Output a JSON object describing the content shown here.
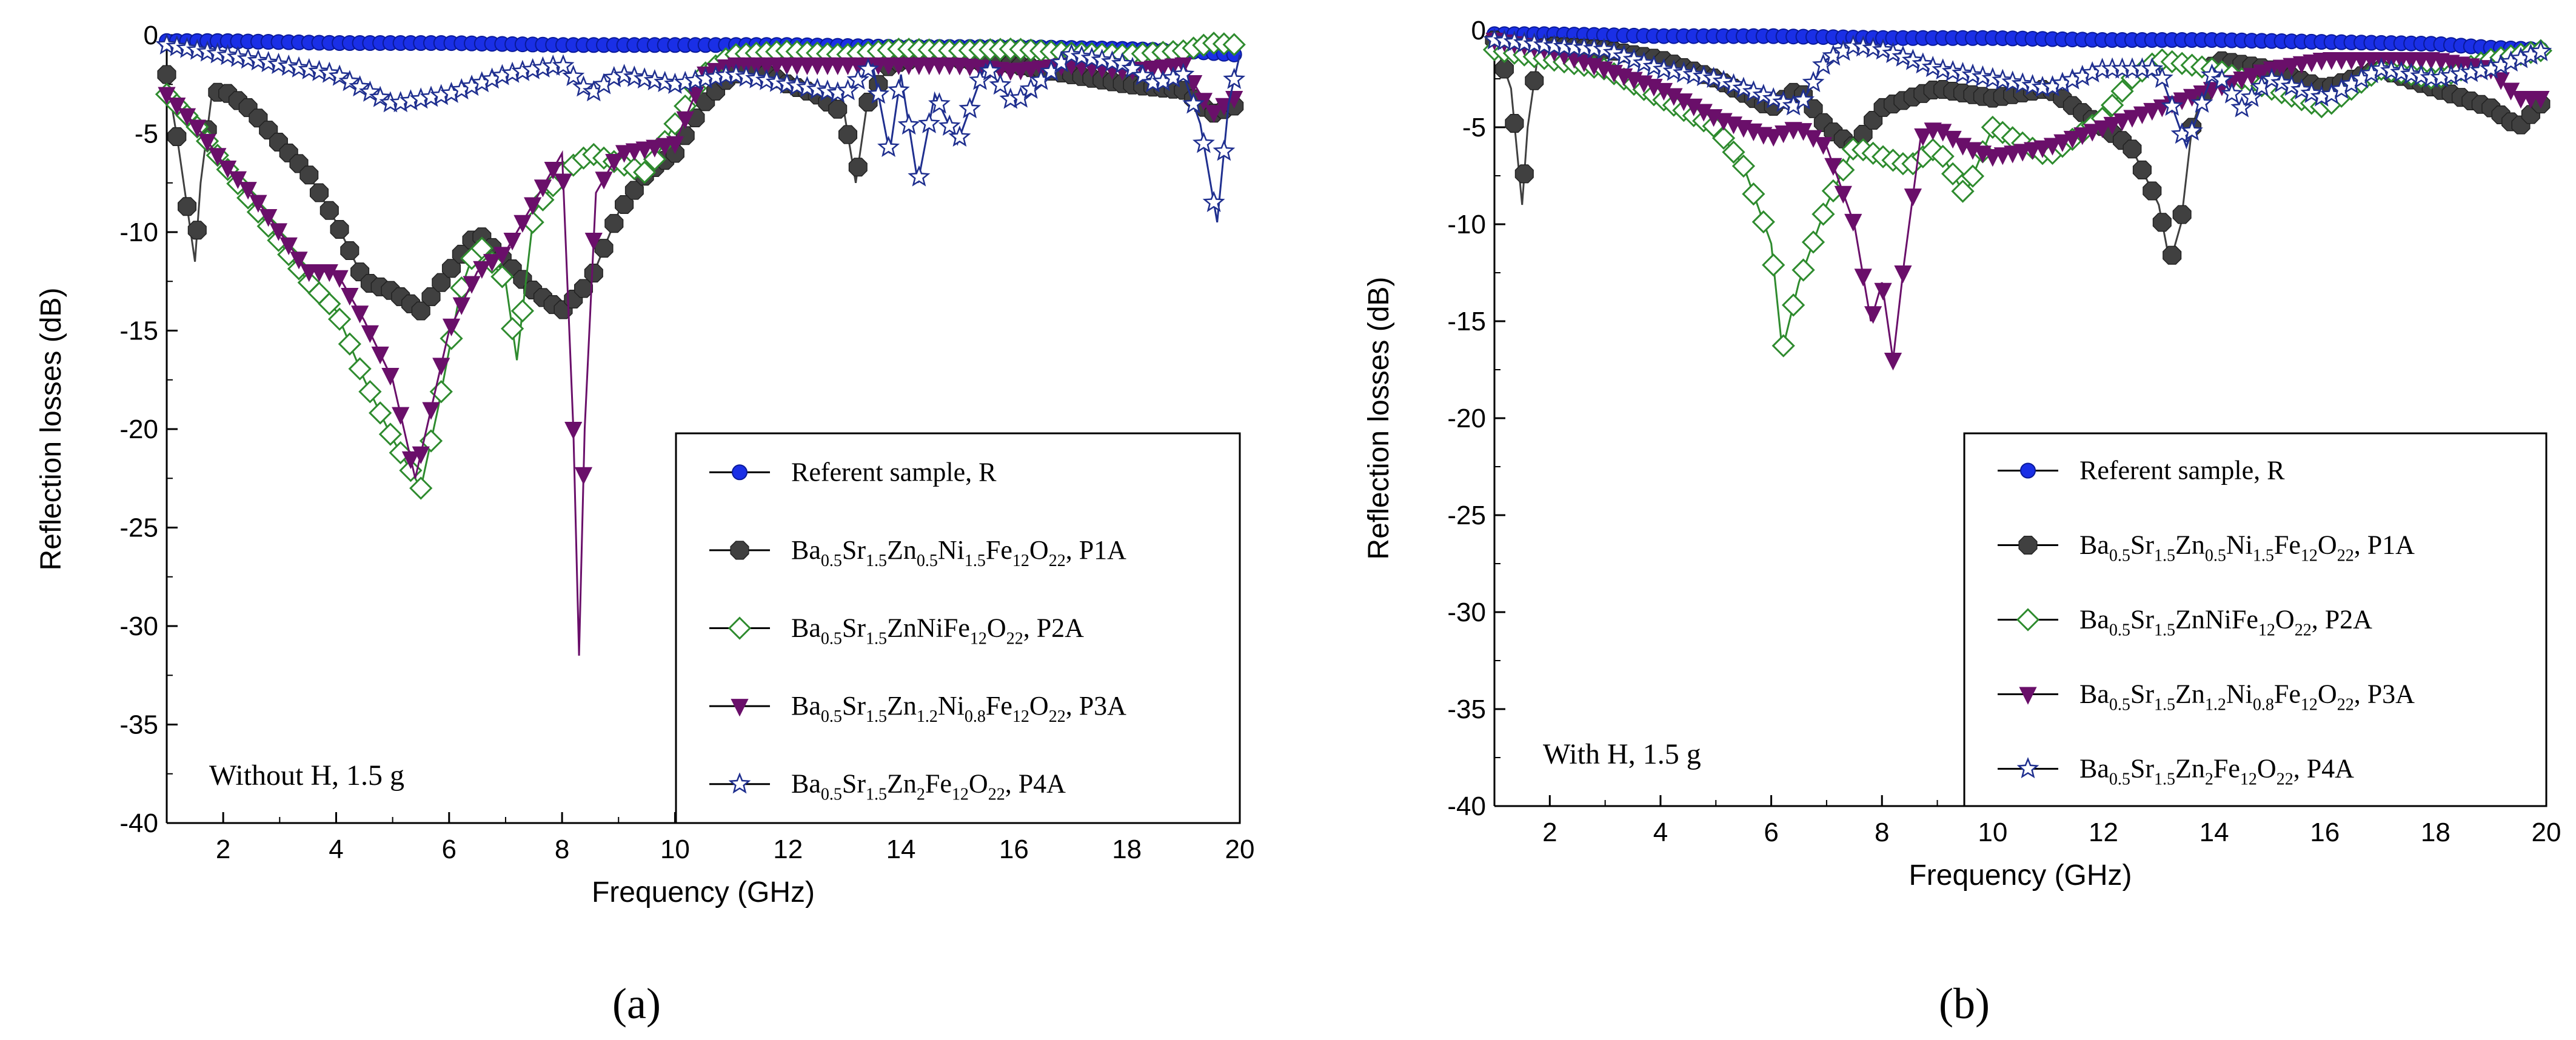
{
  "colors": {
    "R": "#1a2fe6",
    "P1A": "#404040",
    "P2A": "#2e8b2e",
    "P3A": "#6a0f6a",
    "P4A": "#1f2f8f"
  },
  "legend": [
    {
      "id": "R",
      "parts": [
        {
          "t": "Referent sample, R"
        }
      ]
    },
    {
      "id": "P1A",
      "parts": [
        {
          "t": "Ba"
        },
        {
          "t": "0.5",
          "s": 1
        },
        {
          "t": "Sr"
        },
        {
          "t": "1.5",
          "s": 1
        },
        {
          "t": "Zn"
        },
        {
          "t": "0.5",
          "s": 1
        },
        {
          "t": "Ni"
        },
        {
          "t": "1.5",
          "s": 1
        },
        {
          "t": "Fe"
        },
        {
          "t": "12",
          "s": 1
        },
        {
          "t": "O"
        },
        {
          "t": "22",
          "s": 1
        },
        {
          "t": ", P1A"
        }
      ]
    },
    {
      "id": "P2A",
      "parts": [
        {
          "t": "Ba"
        },
        {
          "t": "0.5",
          "s": 1
        },
        {
          "t": "Sr"
        },
        {
          "t": "1.5",
          "s": 1
        },
        {
          "t": "ZnNiFe"
        },
        {
          "t": "12",
          "s": 1
        },
        {
          "t": "O"
        },
        {
          "t": "22",
          "s": 1
        },
        {
          "t": ", P2A"
        }
      ]
    },
    {
      "id": "P3A",
      "parts": [
        {
          "t": "Ba"
        },
        {
          "t": "0.5",
          "s": 1
        },
        {
          "t": "Sr"
        },
        {
          "t": "1.5",
          "s": 1
        },
        {
          "t": "Zn"
        },
        {
          "t": "1.2",
          "s": 1
        },
        {
          "t": "Ni"
        },
        {
          "t": "0.8",
          "s": 1
        },
        {
          "t": "Fe"
        },
        {
          "t": "12",
          "s": 1
        },
        {
          "t": "O"
        },
        {
          "t": "22",
          "s": 1
        },
        {
          "t": ", P3A"
        }
      ]
    },
    {
      "id": "P4A",
      "parts": [
        {
          "t": "Ba"
        },
        {
          "t": "0.5",
          "s": 1
        },
        {
          "t": "Sr"
        },
        {
          "t": "1.5",
          "s": 1
        },
        {
          "t": "Zn"
        },
        {
          "t": "2",
          "s": 1
        },
        {
          "t": "Fe"
        },
        {
          "t": "12",
          "s": 1
        },
        {
          "t": "O"
        },
        {
          "t": "22",
          "s": 1
        },
        {
          "t": ", P4A"
        }
      ]
    }
  ],
  "chart_data": [
    {
      "type": "line",
      "panel_label": "(a)",
      "annotation": "Without H, 1.5 g",
      "xlabel": "Frequency (GHz)",
      "ylabel": "Reflection losses (dB)",
      "xlim": [
        1,
        20
      ],
      "ylim": [
        -40,
        0
      ],
      "xticks": [
        2,
        4,
        6,
        8,
        10,
        12,
        14,
        16,
        18,
        20
      ],
      "yticks": [
        0,
        -5,
        -10,
        -15,
        -20,
        -25,
        -30,
        -35,
        -40
      ],
      "legend_position": "bottom-right",
      "series": [
        {
          "id": "R",
          "x": [
            1,
            2,
            4,
            6,
            8,
            10,
            12,
            14,
            16,
            18,
            19,
            20
          ],
          "y": [
            -0.3,
            -0.3,
            -0.4,
            -0.4,
            -0.5,
            -0.5,
            -0.5,
            -0.6,
            -0.6,
            -0.7,
            -0.8,
            -1.0
          ]
        },
        {
          "id": "P1A",
          "x": [
            1.0,
            1.2,
            1.4,
            1.5,
            1.6,
            1.8,
            2.0,
            2.5,
            3.0,
            3.5,
            4.0,
            4.5,
            5.0,
            5.5,
            6.0,
            6.5,
            7.0,
            7.5,
            8.0,
            8.5,
            9.0,
            9.5,
            10.0,
            10.5,
            11.0,
            11.5,
            12.0,
            12.5,
            13.0,
            13.2,
            13.4,
            13.8,
            14.5,
            15.0,
            16.0,
            17.0,
            18.0,
            19.0,
            19.5,
            20.0
          ],
          "y": [
            -2.0,
            -5.5,
            -9.5,
            -11.5,
            -7.5,
            -3.0,
            -2.8,
            -3.8,
            -5.5,
            -7.0,
            -9.5,
            -12.5,
            -13.0,
            -14.0,
            -12.0,
            -10.0,
            -11.5,
            -13.0,
            -14.0,
            -12.5,
            -9.0,
            -7.0,
            -6.0,
            -3.5,
            -2.0,
            -1.8,
            -2.5,
            -3.0,
            -4.0,
            -7.5,
            -3.5,
            -1.5,
            -1.0,
            -1.2,
            -1.5,
            -2.0,
            -2.5,
            -2.8,
            -4.0,
            -3.5
          ]
        },
        {
          "id": "P2A",
          "x": [
            1.0,
            1.5,
            2.0,
            2.5,
            3.0,
            3.5,
            4.0,
            4.5,
            5.0,
            5.5,
            5.8,
            6.2,
            6.5,
            7.0,
            7.2,
            7.5,
            8.0,
            8.5,
            9.0,
            9.5,
            10.0,
            10.5,
            11.0,
            12.0,
            13.0,
            14.0,
            15.0,
            16.0,
            17.0,
            18.0,
            19.0,
            19.5,
            20.0
          ],
          "y": [
            -3.0,
            -4.5,
            -6.5,
            -8.5,
            -10.5,
            -12.5,
            -14.0,
            -17.5,
            -20.5,
            -23.0,
            -19.0,
            -13.0,
            -10.5,
            -12.5,
            -16.5,
            -9.0,
            -7.0,
            -6.0,
            -6.5,
            -7.0,
            -4.5,
            -2.0,
            -1.0,
            -0.8,
            -1.0,
            -0.7,
            -0.8,
            -0.7,
            -0.9,
            -1.0,
            -0.8,
            -0.4,
            -0.5
          ]
        },
        {
          "id": "P3A",
          "x": [
            1.0,
            1.5,
            2.0,
            2.5,
            3.0,
            3.5,
            4.0,
            4.5,
            5.0,
            5.4,
            5.6,
            6.0,
            6.5,
            7.0,
            7.5,
            8.0,
            8.2,
            8.3,
            8.4,
            8.6,
            9.0,
            10.0,
            10.5,
            11.0,
            12.0,
            13.0,
            14.0,
            15.0,
            16.0,
            17.0,
            18.0,
            19.0,
            19.5,
            20.0
          ],
          "y": [
            -3.0,
            -4.5,
            -6.5,
            -8.0,
            -10.0,
            -12.0,
            -12.0,
            -14.5,
            -17.5,
            -22.5,
            -20.0,
            -15.0,
            -12.0,
            -11.0,
            -8.5,
            -6.0,
            -20.0,
            -31.5,
            -20.0,
            -8.0,
            -6.0,
            -5.5,
            -2.0,
            -1.5,
            -1.5,
            -1.5,
            -1.5,
            -1.5,
            -1.8,
            -1.5,
            -1.8,
            -1.5,
            -4.0,
            -3.0
          ]
        },
        {
          "id": "P4A",
          "x": [
            1.0,
            2.0,
            3.0,
            4.0,
            5.0,
            6.0,
            7.0,
            8.0,
            8.5,
            9.0,
            10.0,
            11.0,
            12.0,
            13.0,
            13.5,
            13.8,
            14.0,
            14.3,
            14.6,
            15.0,
            15.5,
            16.0,
            17.0,
            18.0,
            18.5,
            19.0,
            19.3,
            19.6,
            19.8,
            20.0
          ],
          "y": [
            -0.5,
            -1.0,
            -1.5,
            -2.0,
            -3.5,
            -3.0,
            -2.0,
            -1.5,
            -3.0,
            -2.0,
            -2.5,
            -2.0,
            -2.5,
            -3.0,
            -1.5,
            -6.0,
            -2.0,
            -7.5,
            -3.0,
            -5.5,
            -1.5,
            -3.5,
            -1.0,
            -1.5,
            -2.5,
            -2.0,
            -4.5,
            -9.5,
            -3.5,
            -1.0
          ]
        }
      ]
    },
    {
      "type": "line",
      "panel_label": "(b)",
      "annotation": "With H, 1.5 g",
      "xlabel": "Frequency (GHz)",
      "ylabel": "Reflection losses (dB)",
      "xlim": [
        1,
        20
      ],
      "ylim": [
        -40,
        0
      ],
      "xticks": [
        2,
        4,
        6,
        8,
        10,
        12,
        14,
        16,
        18,
        20
      ],
      "yticks": [
        0,
        -5,
        -10,
        -15,
        -20,
        -25,
        -30,
        -35,
        -40
      ],
      "legend_position": "bottom-right",
      "series": [
        {
          "id": "R",
          "x": [
            1,
            2,
            4,
            6,
            8,
            10,
            12,
            14,
            16,
            18,
            19,
            20
          ],
          "y": [
            -0.2,
            -0.2,
            -0.3,
            -0.3,
            -0.4,
            -0.4,
            -0.5,
            -0.5,
            -0.6,
            -0.7,
            -0.9,
            -1.0
          ]
        },
        {
          "id": "P1A",
          "x": [
            1.0,
            1.3,
            1.5,
            1.6,
            1.8,
            2.0,
            3.0,
            4.0,
            5.0,
            6.0,
            6.5,
            7.0,
            7.5,
            8.0,
            8.5,
            9.0,
            10.0,
            11.0,
            12.0,
            12.5,
            13.0,
            13.2,
            13.4,
            13.6,
            14.0,
            15.0,
            16.0,
            17.0,
            18.0,
            19.0,
            19.5,
            20.0
          ],
          "y": [
            -0.5,
            -3.0,
            -9.0,
            -5.0,
            -1.0,
            -0.8,
            -1.0,
            -1.5,
            -2.5,
            -4.0,
            -3.0,
            -5.0,
            -6.0,
            -4.0,
            -3.5,
            -3.0,
            -3.5,
            -3.0,
            -5.0,
            -6.0,
            -9.0,
            -12.0,
            -10.0,
            -5.0,
            -1.5,
            -2.0,
            -3.0,
            -2.0,
            -3.0,
            -4.0,
            -5.0,
            -3.5
          ]
        },
        {
          "id": "P2A",
          "x": [
            1.0,
            2.0,
            3.0,
            4.0,
            5.0,
            5.5,
            6.0,
            6.2,
            6.5,
            7.0,
            7.5,
            8.0,
            8.5,
            9.0,
            9.5,
            10.0,
            11.0,
            12.0,
            12.5,
            13.0,
            14.0,
            15.0,
            16.0,
            17.0,
            18.0,
            19.0,
            20.0
          ],
          "y": [
            -1.0,
            -1.5,
            -2.0,
            -3.5,
            -5.0,
            -7.0,
            -11.0,
            -16.5,
            -13.0,
            -9.0,
            -6.0,
            -6.5,
            -7.0,
            -6.0,
            -8.5,
            -5.0,
            -6.5,
            -4.5,
            -2.5,
            -1.5,
            -2.0,
            -3.0,
            -4.0,
            -2.0,
            -2.5,
            -1.5,
            -1.0
          ]
        },
        {
          "id": "P3A",
          "x": [
            1.0,
            2.0,
            3.0,
            4.0,
            5.0,
            6.0,
            6.5,
            7.0,
            7.5,
            7.8,
            8.0,
            8.2,
            8.4,
            8.7,
            9.0,
            9.5,
            10.0,
            11.0,
            12.0,
            13.0,
            14.0,
            15.0,
            16.0,
            17.0,
            18.0,
            19.0,
            19.5,
            20.0
          ],
          "y": [
            -0.5,
            -1.0,
            -2.0,
            -3.0,
            -4.5,
            -5.5,
            -5.0,
            -6.0,
            -10.0,
            -15.0,
            -13.0,
            -17.0,
            -12.0,
            -5.5,
            -5.0,
            -6.0,
            -6.5,
            -6.0,
            -5.0,
            -4.0,
            -3.0,
            -2.0,
            -1.5,
            -1.5,
            -1.5,
            -2.0,
            -3.5,
            -3.5
          ]
        },
        {
          "id": "P4A",
          "x": [
            1.0,
            2.0,
            3.0,
            4.0,
            5.0,
            5.5,
            6.0,
            6.5,
            7.0,
            7.5,
            8.0,
            8.5,
            9.0,
            10.0,
            11.0,
            12.0,
            13.0,
            13.5,
            14.0,
            14.5,
            15.0,
            16.0,
            17.0,
            18.0,
            19.0,
            20.0
          ],
          "y": [
            -0.5,
            -0.8,
            -1.0,
            -2.0,
            -2.5,
            -3.0,
            -3.5,
            -4.0,
            -1.5,
            -0.8,
            -1.0,
            -1.5,
            -2.0,
            -2.5,
            -3.0,
            -2.0,
            -2.0,
            -6.0,
            -2.0,
            -4.0,
            -2.5,
            -3.5,
            -2.0,
            -2.5,
            -2.0,
            -1.0
          ]
        }
      ]
    }
  ]
}
